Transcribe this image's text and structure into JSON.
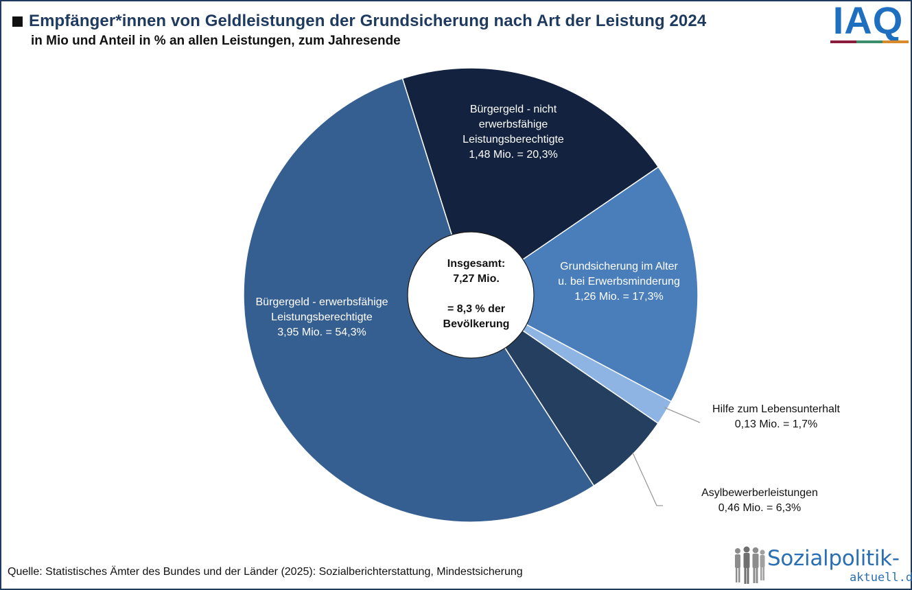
{
  "header": {
    "title": "Empfänger*innen von Geldleistungen der Grundsicherung nach Art der Leistung 2024",
    "subtitle": "in Mio und Anteil in % an allen Leistungen, zum Jahresende"
  },
  "logos": {
    "iaq": {
      "text": "IAQ",
      "color": "#1f6fc0",
      "bar_colors": [
        "#8a1c3d",
        "#8a1c3d",
        "#3a8f6a",
        "#3a8f6a",
        "#d98a2b",
        "#d98a2b"
      ]
    },
    "sozialpolitik": {
      "main": "Sozialpolitik-",
      "sub": "aktuell.de",
      "color": "#2a6fb3"
    }
  },
  "footer": {
    "source": "Quelle: Statistisches Ämter des Bundes und der Länder (2025): Sozialberichterstattung, Mindestsicherung"
  },
  "chart_data": {
    "type": "pie",
    "donut": true,
    "start_angle_deg": -17.5,
    "slices": [
      {
        "name": "Bürgergeld - nicht erwerbsfähige Leistungsberechtigte",
        "value": 1.48,
        "share": 20.3,
        "color": "#13233f",
        "label_lines": [
          "Bürgergeld -  nicht",
          "erwerbsfähige",
          "Leistungsberechtigte",
          "1,48 Mio. = 20,3%"
        ]
      },
      {
        "name": "Grundsicherung im Alter u. bei Erwerbsminderung",
        "value": 1.26,
        "share": 17.3,
        "color": "#4a7ebb",
        "label_lines": [
          "Grundsicherung  im Alter",
          "u. bei Erwerbsminderung",
          "1,26 Mio. = 17,3%"
        ]
      },
      {
        "name": "Hilfe zum Lebensunterhalt",
        "value": 0.13,
        "share": 1.7,
        "color": "#8eb4e3",
        "label_lines": [
          "Hilfe zum Lebensunterhalt",
          "0,13 Mio. = 1,7%"
        ]
      },
      {
        "name": "Asylbewerberleistungen",
        "value": 0.46,
        "share": 6.3,
        "color": "#243f60",
        "label_lines": [
          "Asylbewerberleistungen",
          "0,46 Mio. = 6,3%"
        ]
      },
      {
        "name": "Bürgergeld - erwerbsfähige Leistungsberechtigte",
        "value": 3.95,
        "share": 54.3,
        "color": "#365f91",
        "label_lines": [
          "Bürgergeld - erwerbsfähige",
          "Leistungsberechtigte",
          "3,95 Mio. = 54,3%"
        ]
      }
    ],
    "center_label_lines": [
      "Insgesamt:",
      "7,27  Mio.",
      "",
      "= 8,3 % der",
      "Bevölkerung"
    ]
  }
}
